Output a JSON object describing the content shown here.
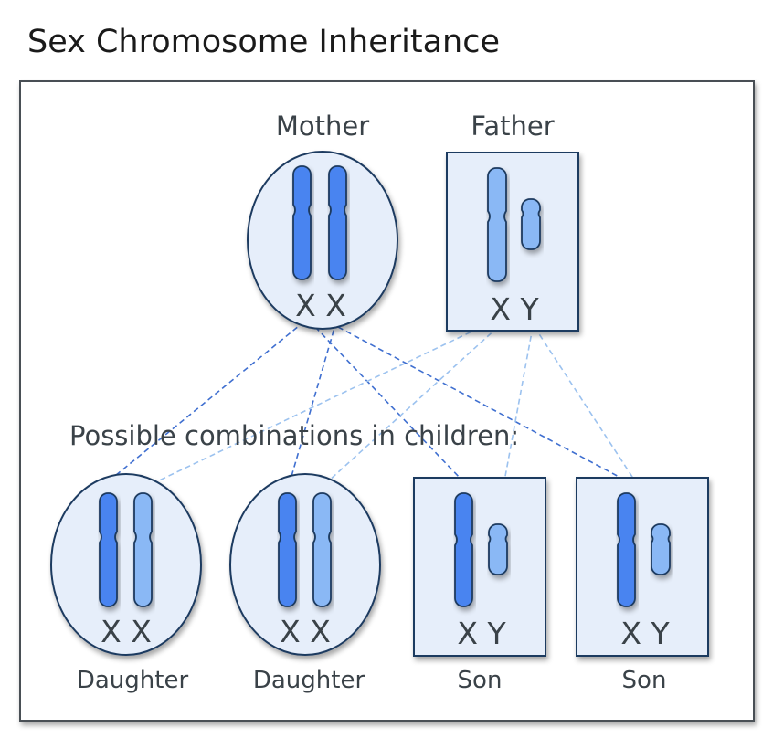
{
  "title": "Sex Chromosome Inheritance",
  "parents": {
    "mother": {
      "label": "Mother",
      "chromosomes": "X X"
    },
    "father": {
      "label": "Father",
      "chromosomes": "X Y"
    }
  },
  "subtitle": "Possible combinations in children:",
  "children": [
    {
      "label": "Daughter",
      "chromosomes": "X X"
    },
    {
      "label": "Daughter",
      "chromosomes": "X X"
    },
    {
      "label": "Son",
      "chromosomes": "X Y"
    },
    {
      "label": "Son",
      "chromosomes": "X Y"
    }
  ],
  "colors": {
    "maternal_x": "#4a84f0",
    "paternal": "#8ab8f5",
    "outline": "#1f3a60",
    "cell_fill": "#e6eefa",
    "dash_dark": "#3f6fd0",
    "dash_light": "#9cc2ef"
  }
}
